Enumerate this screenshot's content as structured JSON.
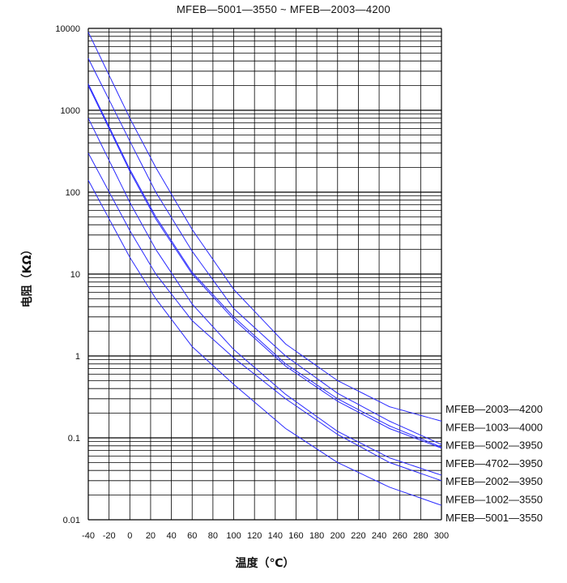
{
  "chart_data": {
    "type": "line",
    "title": "MFEB—5001—3550 ~ MFEB—2003—4200",
    "xlabel": "温度（℃）",
    "ylabel": "电阻（KΩ）",
    "xlim": [
      -40,
      300
    ],
    "ylim": [
      0.01,
      10000
    ],
    "y_scale": "log",
    "grid": true,
    "x_ticks": [
      "-40",
      "-20",
      "0",
      "20",
      "40",
      "60",
      "80",
      "100",
      "120",
      "140",
      "160",
      "180",
      "200",
      "220",
      "240",
      "260",
      "280",
      "300"
    ],
    "y_ticks": [
      "10000",
      "1000",
      "100",
      "10",
      "1",
      "0.1",
      "0.01"
    ],
    "legend_placement": "right",
    "line_color": "#2a2aff",
    "series": [
      {
        "name": "MFEB—2003—4200",
        "x": [
          -40,
          0,
          25,
          60,
          100,
          150,
          200,
          250,
          300
        ],
        "values": [
          9000,
          800,
          200,
          35,
          6.5,
          1.4,
          0.5,
          0.24,
          0.16
        ]
      },
      {
        "name": "MFEB—1003—4000",
        "x": [
          -40,
          0,
          25,
          60,
          100,
          150,
          200,
          250,
          300
        ],
        "values": [
          4300,
          420,
          100,
          19,
          3.8,
          1.0,
          0.35,
          0.16,
          0.083
        ]
      },
      {
        "name": "MFEB—5002—3950",
        "x": [
          -40,
          0,
          25,
          60,
          100,
          150,
          200,
          250,
          300
        ],
        "values": [
          2100,
          190,
          50,
          10.5,
          3.0,
          0.8,
          0.3,
          0.14,
          0.077
        ]
      },
      {
        "name": "MFEB—4702—3950",
        "x": [
          -40,
          0,
          25,
          60,
          100,
          150,
          200,
          250,
          300
        ],
        "values": [
          2000,
          180,
          47,
          10,
          2.8,
          0.75,
          0.28,
          0.13,
          0.075
        ]
      },
      {
        "name": "MFEB—2002—3950",
        "x": [
          -40,
          0,
          25,
          60,
          100,
          150,
          200,
          250,
          300
        ],
        "values": [
          800,
          75,
          20,
          4.3,
          1.2,
          0.34,
          0.12,
          0.057,
          0.035
        ]
      },
      {
        "name": "MFEB—1002—3550",
        "x": [
          -40,
          0,
          25,
          60,
          100,
          150,
          200,
          250,
          300
        ],
        "values": [
          300,
          34,
          10,
          2.7,
          0.95,
          0.3,
          0.11,
          0.05,
          0.03
        ]
      },
      {
        "name": "MFEB—5001—3550",
        "x": [
          -40,
          0,
          25,
          60,
          100,
          150,
          200,
          250,
          300
        ],
        "values": [
          140,
          16,
          5,
          1.3,
          0.45,
          0.13,
          0.05,
          0.025,
          0.015
        ]
      }
    ]
  }
}
